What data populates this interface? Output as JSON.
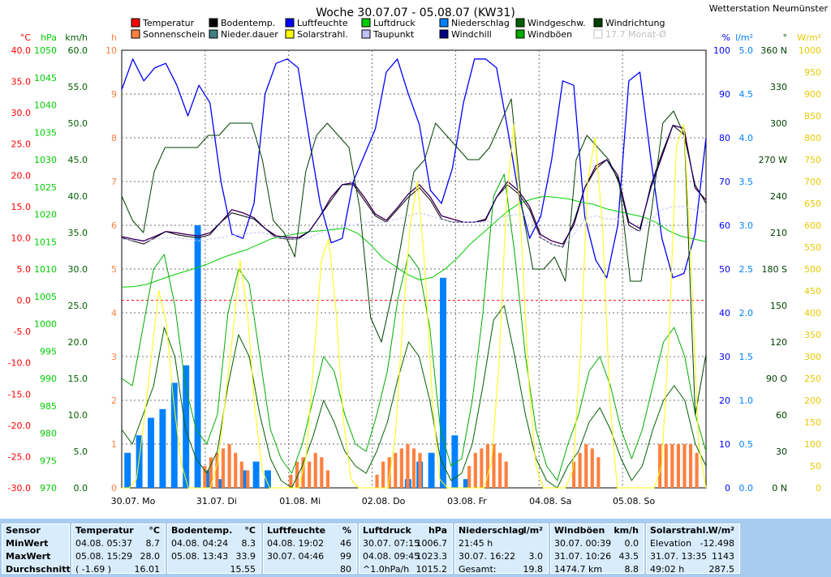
{
  "title": "Woche 30.07.07 - 05.08.07 (KW31)",
  "station": "Wetterstation Neumünster",
  "chart_data": {
    "type": "line",
    "title": "Woche 30.07.07 - 05.08.07 (KW31)",
    "x_labels": [
      "30.07. Mo",
      "31.07. Di",
      "01.08. Mi",
      "02.08. Do",
      "03.08. Fr",
      "04.08. Sa",
      "05.08. So"
    ],
    "legend": [
      {
        "label": "Temperatur",
        "color": "#ff0000"
      },
      {
        "label": "Bodentemp.",
        "color": "#000000"
      },
      {
        "label": "Luftfeuchte",
        "color": "#0000ff"
      },
      {
        "label": "Luftdruck",
        "color": "#00cc00"
      },
      {
        "label": "Niederschlag",
        "color": "#0080ff"
      },
      {
        "label": "Windgeschw.",
        "color": "#006000"
      },
      {
        "label": "Windrichtung",
        "color": "#004000"
      },
      {
        "label": "Sonnenschein",
        "color": "#ff8040"
      },
      {
        "label": "Nieder.dauer",
        "color": "#408080"
      },
      {
        "label": "Solarstrahl.",
        "color": "#ffff00"
      },
      {
        "label": "Taupunkt",
        "color": "#c0c0ff"
      },
      {
        "label": "Windchill",
        "color": "#000080"
      },
      {
        "label": "Windböen",
        "color": "#00aa00"
      },
      {
        "label": "17.7 Monat-Ø",
        "color": "#c0c0c0"
      }
    ],
    "axes_left": [
      {
        "unit": "°C",
        "color": "#ff0000",
        "min": -30,
        "max": 40,
        "ticks": [
          "40.0",
          "35.0",
          "30.0",
          "25.0",
          "20.0",
          "15.0",
          "10.0",
          "5.0",
          "0.0",
          "-5.0",
          "-10.0",
          "-15.0",
          "-20.0",
          "-25.0",
          "-30.0"
        ]
      },
      {
        "unit": "hPa",
        "color": "#00cc00",
        "min": 970,
        "max": 1050,
        "ticks": [
          "1050",
          "1045",
          "1040",
          "1035",
          "1030",
          "1025",
          "1020",
          "1015",
          "1010",
          "1005",
          "1000",
          "995",
          "990",
          "985",
          "980",
          "975",
          "970"
        ]
      },
      {
        "unit": "km/h",
        "color": "#006000",
        "min": 0,
        "max": 60,
        "ticks": [
          "60.0",
          "55.0",
          "50.0",
          "45.0",
          "40.0",
          "35.0",
          "30.0",
          "25.0",
          "20.0",
          "15.0",
          "10.0",
          "5.0",
          "0.0"
        ]
      },
      {
        "unit": "h",
        "color": "#ff8040",
        "min": 0,
        "max": 10,
        "ticks": [
          "10",
          "9",
          "8",
          "7",
          "6",
          "5",
          "4",
          "3",
          "2",
          "1",
          "0"
        ]
      }
    ],
    "axes_right": [
      {
        "unit": "%",
        "color": "#0000ff",
        "min": 0,
        "max": 100,
        "ticks": [
          "100",
          "90",
          "80",
          "70",
          "60",
          "50",
          "40",
          "30",
          "20",
          "10",
          "0"
        ]
      },
      {
        "unit": "l/m²",
        "color": "#0080ff",
        "min": 0,
        "max": 5,
        "ticks": [
          "5.0",
          "4.5",
          "4.0",
          "3.5",
          "3.0",
          "2.5",
          "2.0",
          "1.5",
          "1.0",
          "0.5",
          "0.0"
        ]
      },
      {
        "unit": "°",
        "color": "#004000",
        "min": 0,
        "max": 360,
        "ticks": [
          "360 N",
          "330",
          "300",
          "270 W",
          "240",
          "210",
          "180 S",
          "150",
          "120",
          "90 O",
          "60",
          "30",
          "0 N"
        ]
      },
      {
        "unit": "W/m²",
        "color": "#e8c800",
        "min": 0,
        "max": 1000,
        "ticks": [
          "1000",
          "950",
          "900",
          "850",
          "800",
          "750",
          "700",
          "650",
          "600",
          "550",
          "500",
          "450",
          "400",
          "350",
          "300",
          "250",
          "200",
          "150",
          "100",
          "50",
          "0"
        ]
      }
    ],
    "series": [
      {
        "name": "Temperatur",
        "unit": "°C",
        "color": "#ff0000",
        "values": [
          10.2,
          9.8,
          9.5,
          10.2,
          11.0,
          10.8,
          10.5,
          10.3,
          10.8,
          12.5,
          14.5,
          14.0,
          13.2,
          11.5,
          10.3,
          10.1,
          10.0,
          11.0,
          13.5,
          16.5,
          18.5,
          18.8,
          16.5,
          13.8,
          12.8,
          14.8,
          17.0,
          18.5,
          16.5,
          13.5,
          13.0,
          12.5,
          12.5,
          12.8,
          16.5,
          19.0,
          17.5,
          15.0,
          10.5,
          9.5,
          9.0,
          12.0,
          18.0,
          21.5,
          22.5,
          20.0,
          12.5,
          11.5,
          18.0,
          23.0,
          28.0,
          27.5,
          18.0,
          16.0
        ]
      },
      {
        "name": "Bodentemp.",
        "unit": "°C",
        "color": "#000000",
        "values": [
          10.0,
          9.5,
          9.0,
          10.0,
          11.0,
          10.5,
          10.2,
          10.0,
          10.5,
          12.5,
          14.0,
          13.5,
          13.0,
          11.5,
          10.0,
          9.8,
          9.8,
          11.0,
          13.5,
          16.0,
          18.5,
          18.5,
          16.0,
          13.5,
          12.5,
          14.5,
          16.5,
          18.0,
          16.0,
          13.0,
          12.5,
          12.5,
          12.5,
          13.0,
          16.5,
          18.5,
          17.0,
          14.5,
          10.0,
          9.0,
          8.5,
          12.5,
          18.0,
          21.0,
          22.5,
          19.5,
          12.0,
          11.0,
          18.5,
          23.5,
          28.0,
          26.5,
          18.5,
          15.5
        ]
      },
      {
        "name": "Luftfeuchte",
        "unit": "%",
        "color": "#0000ff",
        "values": [
          91,
          98,
          93,
          96,
          97,
          92,
          85,
          92,
          88,
          70,
          58,
          57,
          65,
          90,
          97,
          98,
          96,
          80,
          65,
          56,
          57,
          70,
          76,
          82,
          95,
          98,
          90,
          83,
          68,
          65,
          73,
          88,
          98,
          98,
          96,
          82,
          67,
          57,
          62,
          75,
          93,
          92,
          62,
          52,
          48,
          60,
          93,
          95,
          75,
          57,
          48,
          49,
          58,
          80
        ]
      },
      {
        "name": "Luftdruck",
        "unit": "hPa",
        "color": "#00cc00",
        "values": [
          1006.7,
          1006.8,
          1007.2,
          1008.0,
          1008.8,
          1009.5,
          1010.2,
          1011.0,
          1012.0,
          1012.8,
          1013.5,
          1014.5,
          1015.5,
          1016.0,
          1016.4,
          1016.8,
          1017.0,
          1017.2,
          1017.5,
          1016.5,
          1014.5,
          1012.0,
          1010.5,
          1009.0,
          1008.0,
          1008.5,
          1010.0,
          1012.0,
          1014.5,
          1016.5,
          1018.5,
          1020.5,
          1022.0,
          1022.8,
          1023.3,
          1023.1,
          1022.8,
          1022.2,
          1021.8,
          1021.0,
          1020.5,
          1020.0,
          1019.5,
          1018.5,
          1017.0,
          1016.0,
          1015.5,
          1015.0
        ]
      },
      {
        "name": "Windgeschw.",
        "unit": "km/h",
        "color": "#006000",
        "values": [
          8,
          6,
          10,
          14,
          22,
          18,
          8,
          4,
          2,
          5,
          14,
          21,
          18,
          10,
          4,
          1,
          0,
          3,
          7,
          12,
          9,
          5,
          3,
          2,
          5,
          9,
          15,
          20,
          18,
          12,
          4,
          1,
          2,
          6,
          14,
          23,
          25,
          18,
          10,
          4,
          1,
          0,
          3,
          5,
          9,
          11,
          8,
          4,
          1,
          3,
          8,
          12,
          14,
          12,
          6,
          3
        ]
      },
      {
        "name": "Windböen",
        "unit": "km/h",
        "color": "#00aa00",
        "values": [
          15,
          14,
          22,
          30,
          32,
          25,
          14,
          8,
          6,
          10,
          24,
          30,
          28,
          18,
          8,
          4,
          2,
          6,
          12,
          18,
          16,
          10,
          6,
          5,
          10,
          16,
          26,
          32,
          30,
          22,
          8,
          3,
          4,
          12,
          24,
          40,
          43,
          32,
          18,
          8,
          3,
          1,
          6,
          10,
          16,
          18,
          14,
          8,
          4,
          8,
          14,
          20,
          22,
          18,
          10,
          5
        ]
      },
      {
        "name": "Windrichtung",
        "unit": "°",
        "color": "#004000",
        "values": [
          240,
          220,
          210,
          260,
          280,
          280,
          280,
          280,
          290,
          290,
          300,
          300,
          300,
          270,
          220,
          210,
          190,
          260,
          290,
          300,
          290,
          280,
          230,
          140,
          120,
          160,
          210,
          260,
          270,
          300,
          290,
          280,
          270,
          270,
          280,
          300,
          320,
          230,
          180,
          180,
          190,
          170,
          270,
          290,
          280,
          270,
          250,
          170,
          170,
          230,
          300,
          310,
          290,
          60,
          110
        ]
      },
      {
        "name": "Windchill",
        "unit": "°C",
        "color": "#000080",
        "values": [
          10.2,
          9.8,
          9.5,
          10.2,
          11.0,
          10.8,
          10.5,
          10.3,
          10.8,
          12.5,
          14.5,
          14.0,
          13.2,
          11.5,
          10.3,
          10.1,
          10.0,
          11.0,
          13.5,
          16.5,
          18.5,
          18.8,
          16.5,
          13.8,
          12.8,
          14.8,
          17.0,
          18.5,
          16.5,
          13.5,
          13.0,
          12.5,
          12.5,
          12.8,
          16.5,
          19.0,
          17.5,
          15.0,
          10.5,
          9.5,
          9.0,
          12.0,
          18.0,
          21.5,
          22.5,
          20.0,
          12.5,
          11.5,
          18.0,
          23.0,
          28.0,
          27.5,
          18.0,
          16.0
        ]
      },
      {
        "name": "Taupunkt",
        "unit": "°C",
        "color": "#c0c0ff",
        "values": [
          9.8,
          9.6,
          9.3,
          9.8,
          10.0,
          10.0,
          9.8,
          9.5,
          9.8,
          10.0,
          10.4,
          10.5,
          10.8,
          10.8,
          10.0,
          9.9,
          9.8,
          10.0,
          10.8,
          11.5,
          11.8,
          12.0,
          12.5,
          12.5,
          12.5,
          13.0,
          13.5,
          14.0,
          13.5,
          13.0,
          12.5,
          12.5,
          12.5,
          12.5,
          13.0,
          13.5,
          13.8,
          13.5,
          10.0,
          9.0,
          8.5,
          10.5,
          13.0,
          13.5,
          13.0,
          13.0,
          11.5,
          11.0,
          13.0,
          14.5,
          15.0,
          15.0,
          14.5,
          14.0
        ]
      },
      {
        "name": "Solarstrahl.",
        "unit": "W/m²",
        "color": "#ffff00",
        "values": [
          0,
          0,
          20,
          150,
          300,
          450,
          380,
          200,
          60,
          0,
          0,
          0,
          0,
          60,
          200,
          350,
          520,
          400,
          180,
          40,
          0,
          0,
          0,
          0,
          0,
          80,
          300,
          520,
          570,
          400,
          150,
          20,
          0,
          0,
          0,
          0,
          0,
          120,
          380,
          600,
          700,
          500,
          200,
          20,
          0,
          0,
          0,
          0,
          0,
          0,
          60,
          280,
          650,
          830,
          580,
          250,
          50,
          0,
          0,
          0,
          0,
          40,
          300,
          700,
          800,
          600,
          200,
          0,
          0,
          0,
          0,
          0,
          0,
          50,
          350,
          780,
          830,
          500,
          100,
          0
        ]
      },
      {
        "name": "Niederschlag",
        "unit": "l/m²",
        "color": "#0080ff",
        "values": [
          0.4,
          0.6,
          0.8,
          0.9,
          1.2,
          1.4,
          3.0,
          0.2,
          0.1,
          0,
          0.2,
          0.3,
          0.2,
          0,
          0,
          0,
          0,
          0,
          0,
          0,
          0,
          0,
          0,
          0,
          0.1,
          0.3,
          0.4,
          2.4,
          0.6,
          0.1,
          0,
          0,
          0,
          0,
          0,
          0,
          0,
          0,
          0,
          0,
          0,
          0,
          0,
          0,
          0,
          0,
          0,
          0,
          0,
          0
        ]
      },
      {
        "name": "Sonnenschein",
        "unit": "h",
        "color": "#ff8040",
        "values": [
          0,
          0,
          0,
          0,
          0,
          0,
          0,
          0,
          0,
          0,
          0,
          0,
          0,
          0.5,
          0.7,
          0.8,
          0.9,
          1.0,
          0.8,
          0.6,
          0.4,
          0,
          0,
          0,
          0,
          0,
          0,
          0.3,
          0.6,
          0.7,
          0.6,
          0.8,
          0.7,
          0.4,
          0,
          0,
          0,
          0,
          0,
          0,
          0,
          0.3,
          0.6,
          0.7,
          0.8,
          0.9,
          1.0,
          0.9,
          0.8,
          0,
          0,
          0,
          0,
          0,
          0,
          0,
          0.5,
          0.8,
          0.9,
          1.0,
          1.0,
          0.8,
          0.6,
          0,
          0,
          0,
          0,
          0,
          0,
          0,
          0,
          0,
          0,
          0.6,
          0.8,
          1.0,
          0.9,
          0.7,
          0,
          0,
          0,
          0,
          0,
          0,
          0,
          0,
          0,
          1.0,
          1.0,
          1.0,
          1.0,
          1.0,
          1.0,
          0.8,
          0
        ]
      }
    ]
  },
  "stats": {
    "header_row": [
      "Sensor",
      "MinWert",
      "MaxWert",
      "Durchschnitt"
    ],
    "temperatur": {
      "title": "Temperatur",
      "unit": "°C",
      "min_time": "04.08.  05:37",
      "min_val": "8.7",
      "max_time": "05.08.  15:29",
      "max_val": "28.0",
      "avg_label": "( -1.69 )",
      "avg_val": "16.01"
    },
    "bodentemp": {
      "title": "Bodentemp.",
      "unit": "°C",
      "min_time": "04.08.  04:24",
      "min_val": "8.3",
      "max_time": "05.08.  13:43",
      "max_val": "33.9",
      "avg_label": "",
      "avg_val": "15.55"
    },
    "luftfeuchte": {
      "title": "Luftfeuchte",
      "unit": "%",
      "min_time": "04.08.  19:02",
      "min_val": "46",
      "max_time": "30.07.  04:46",
      "max_val": "99",
      "avg_label": "",
      "avg_val": "80"
    },
    "luftdruck": {
      "title": "Luftdruck",
      "unit": "hPa",
      "min_time": "30.07.  07:15",
      "min_val": "1006.7",
      "max_time": "04.08.  09:45",
      "max_val": "1023.3",
      "avg_label": "^1.0hPa/h",
      "avg_val": "1015.2"
    },
    "niederschlag": {
      "title": "Niederschlag",
      "unit": "l/m²",
      "min_time": "21:45 h",
      "min_val": "",
      "max_time": "30.07.  16:22",
      "max_val": "3.0",
      "avg_label": "Gesamt:",
      "avg_val": "19.8"
    },
    "windboeen": {
      "title": "Windböen",
      "unit": "km/h",
      "min_time": "30.07.  00:39",
      "min_val": "0.0",
      "max_time": "31.07.  10:26",
      "max_val": "43.5",
      "avg_label": "1474.7 km",
      "avg_val": "8.8"
    },
    "solarstrahl": {
      "title": "Solarstrahl.",
      "unit": "W/m²",
      "min_time": "Elevation",
      "min_val": "-12.498",
      "max_time": "31.07.  13:35",
      "max_val": "1143",
      "avg_label": "49:02 h",
      "avg_val": "287.5"
    }
  }
}
